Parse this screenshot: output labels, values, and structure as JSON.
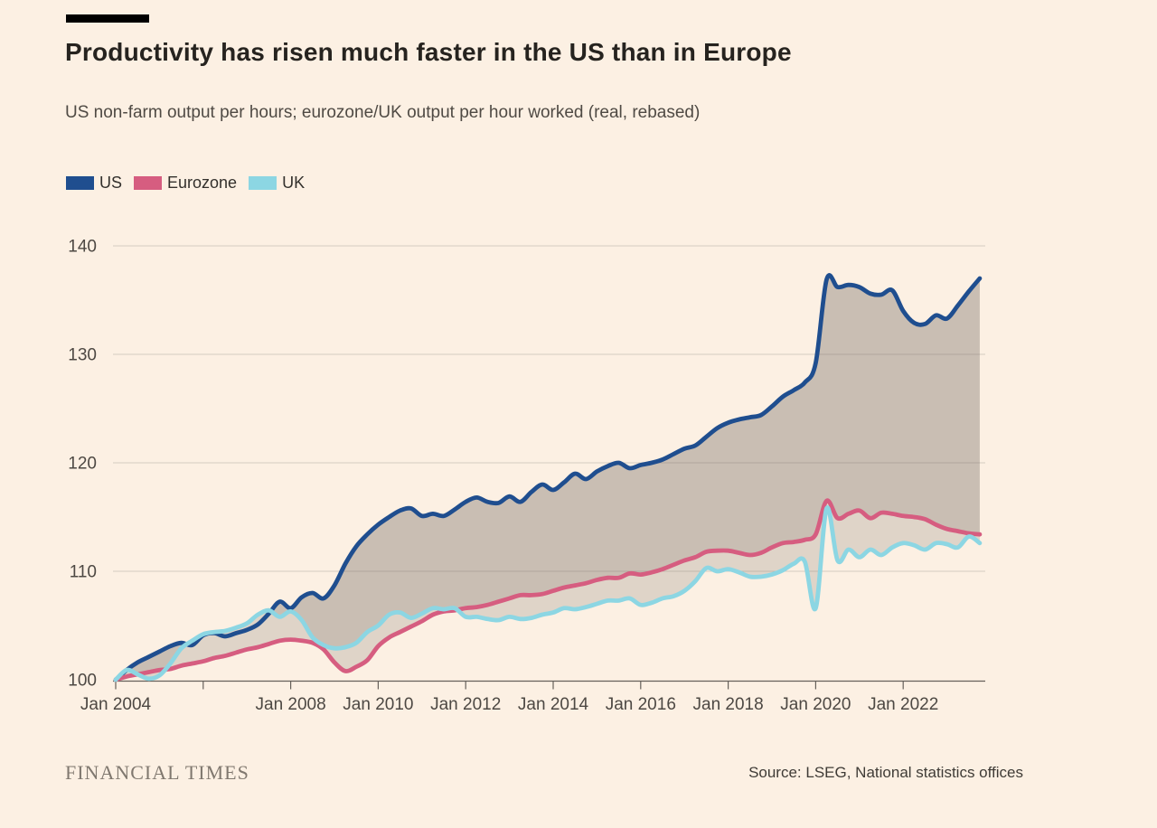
{
  "page": {
    "background": "#FCF0E3",
    "accent_bar_color": "#000000"
  },
  "header": {
    "title": "Productivity has risen much faster in the US than in Europe",
    "subtitle": "US non-farm output per hours; eurozone/UK output per hour worked (real, rebased)"
  },
  "legend": [
    {
      "label": "US",
      "color": "#1F4E8F"
    },
    {
      "label": "Eurozone",
      "color": "#D65D80"
    },
    {
      "label": "UK",
      "color": "#8CD6E3"
    }
  ],
  "chart_data": {
    "type": "line",
    "title": "Productivity has risen much faster in the US than in Europe",
    "subtitle": "US non-farm output per hours; eurozone/UK output per hour worked (real, rebased)",
    "x_start": 2004.0,
    "x_step": 0.25,
    "x_tick_years": [
      2004,
      2006,
      2008,
      2010,
      2012,
      2014,
      2016,
      2018,
      2020,
      2022
    ],
    "x_tick_labels": [
      "Jan 2004",
      "",
      "Jan 2008",
      "Jan 2010",
      "Jan 2012",
      "Jan 2014",
      "Jan 2016",
      "Jan 2018",
      "Jan 2020",
      "Jan 2022"
    ],
    "y_ticks": [
      100,
      110,
      120,
      130,
      140
    ],
    "ylim": [
      100,
      140
    ],
    "grid": true,
    "legend_position": "top-left",
    "band_fill": "rgba(125,114,104,0.22)",
    "grid_color": "#D4CBC0",
    "axis_color": "#66605A",
    "tick_label_color": "#4D4843",
    "series": [
      {
        "name": "US",
        "color": "#1F4E8F",
        "values": [
          100.0,
          100.9,
          101.6,
          102.1,
          102.6,
          103.1,
          103.4,
          103.2,
          104.1,
          104.3,
          104.0,
          104.3,
          104.6,
          105.1,
          106.1,
          107.2,
          106.6,
          107.6,
          108.0,
          107.5,
          108.7,
          110.7,
          112.3,
          113.4,
          114.3,
          115.0,
          115.6,
          115.8,
          115.1,
          115.3,
          115.1,
          115.7,
          116.4,
          116.8,
          116.4,
          116.3,
          116.9,
          116.4,
          117.3,
          118.0,
          117.5,
          118.2,
          119.0,
          118.5,
          119.2,
          119.7,
          120.0,
          119.5,
          119.8,
          120.0,
          120.3,
          120.8,
          121.3,
          121.6,
          122.4,
          123.2,
          123.7,
          124.0,
          124.2,
          124.4,
          125.2,
          126.1,
          126.7,
          127.4,
          129.2,
          136.9,
          136.2,
          136.4,
          136.2,
          135.6,
          135.5,
          135.9,
          134.0,
          132.9,
          132.8,
          133.6,
          133.3,
          134.5,
          135.8,
          137.0
        ]
      },
      {
        "name": "Eurozone",
        "color": "#D65D80",
        "values": [
          100.0,
          100.3,
          100.5,
          100.7,
          100.9,
          101.0,
          101.3,
          101.5,
          101.7,
          102.0,
          102.2,
          102.5,
          102.8,
          103.0,
          103.3,
          103.6,
          103.7,
          103.6,
          103.4,
          102.8,
          101.6,
          100.8,
          101.2,
          101.8,
          103.1,
          103.9,
          104.4,
          104.9,
          105.4,
          106.0,
          106.3,
          106.4,
          106.6,
          106.7,
          106.9,
          107.2,
          107.5,
          107.8,
          107.8,
          107.9,
          108.2,
          108.5,
          108.7,
          108.9,
          109.2,
          109.4,
          109.4,
          109.8,
          109.7,
          109.9,
          110.2,
          110.6,
          111.0,
          111.3,
          111.8,
          111.9,
          111.9,
          111.7,
          111.5,
          111.7,
          112.2,
          112.6,
          112.7,
          112.9,
          113.4,
          116.5,
          114.9,
          115.3,
          115.6,
          114.9,
          115.4,
          115.3,
          115.1,
          115.0,
          114.8,
          114.3,
          113.9,
          113.7,
          113.5,
          113.4
        ]
      },
      {
        "name": "UK",
        "color": "#8CD6E3",
        "values": [
          100.0,
          100.9,
          100.5,
          100.1,
          100.4,
          101.5,
          102.9,
          103.6,
          104.2,
          104.4,
          104.5,
          104.8,
          105.2,
          106.0,
          106.4,
          105.8,
          106.3,
          105.5,
          103.9,
          103.2,
          102.9,
          103.0,
          103.4,
          104.4,
          105.0,
          106.0,
          106.2,
          105.7,
          106.1,
          106.6,
          106.5,
          106.6,
          105.8,
          105.8,
          105.6,
          105.5,
          105.8,
          105.6,
          105.7,
          106.0,
          106.2,
          106.6,
          106.5,
          106.7,
          107.0,
          107.3,
          107.3,
          107.5,
          106.9,
          107.1,
          107.5,
          107.7,
          108.2,
          109.1,
          110.3,
          110.0,
          110.2,
          109.9,
          109.5,
          109.5,
          109.7,
          110.1,
          110.7,
          110.9,
          106.6,
          115.8,
          111.0,
          112.0,
          111.3,
          112.0,
          111.5,
          112.2,
          112.6,
          112.4,
          112.0,
          112.6,
          112.5,
          112.2,
          113.2,
          112.6
        ]
      }
    ]
  },
  "footer": {
    "logo": "FINANCIAL TIMES",
    "source": "Source: LSEG, National statistics offices"
  }
}
